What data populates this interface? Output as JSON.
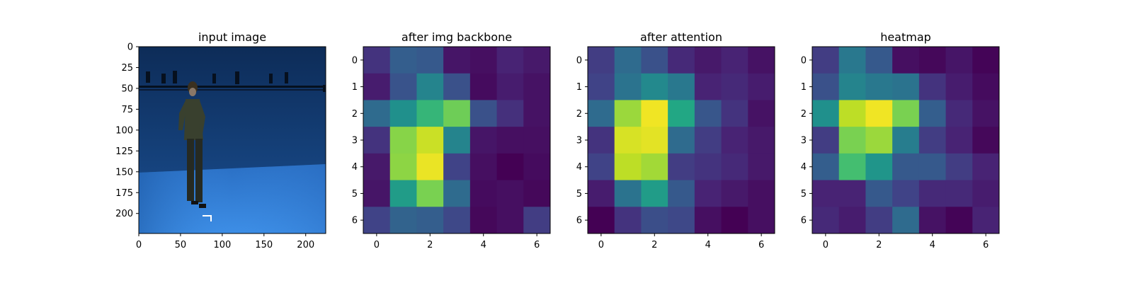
{
  "chart_data": [
    {
      "type": "image",
      "title": "input image",
      "xticks": [
        0,
        50,
        100,
        150,
        200
      ],
      "yticks": [
        0,
        25,
        50,
        75,
        100,
        125,
        150,
        175,
        200
      ],
      "xlim": [
        0,
        224
      ],
      "ylim": [
        224,
        0
      ]
    },
    {
      "type": "heatmap",
      "title": "after img backbone",
      "colormap": "viridis",
      "xticks": [
        0,
        2,
        4,
        6
      ],
      "yticks": [
        0,
        1,
        2,
        3,
        4,
        5,
        6
      ],
      "values": [
        [
          0.15,
          0.3,
          0.28,
          0.06,
          0.04,
          0.1,
          0.07
        ],
        [
          0.08,
          0.26,
          0.45,
          0.25,
          0.03,
          0.08,
          0.05
        ],
        [
          0.35,
          0.5,
          0.66,
          0.78,
          0.25,
          0.14,
          0.05
        ],
        [
          0.15,
          0.82,
          0.92,
          0.45,
          0.06,
          0.04,
          0.04
        ],
        [
          0.07,
          0.83,
          0.97,
          0.2,
          0.04,
          0.0,
          0.03
        ],
        [
          0.06,
          0.55,
          0.8,
          0.35,
          0.03,
          0.04,
          0.02
        ],
        [
          0.2,
          0.32,
          0.3,
          0.22,
          0.02,
          0.04,
          0.18
        ]
      ]
    },
    {
      "type": "heatmap",
      "title": "after attention",
      "colormap": "viridis",
      "xticks": [
        0,
        2,
        4,
        6
      ],
      "yticks": [
        0,
        1,
        2,
        3,
        4,
        5,
        6
      ],
      "values": [
        [
          0.18,
          0.35,
          0.25,
          0.12,
          0.07,
          0.1,
          0.05
        ],
        [
          0.2,
          0.38,
          0.47,
          0.4,
          0.1,
          0.12,
          0.08
        ],
        [
          0.35,
          0.85,
          0.98,
          0.6,
          0.27,
          0.15,
          0.05
        ],
        [
          0.15,
          0.94,
          0.96,
          0.35,
          0.18,
          0.1,
          0.07
        ],
        [
          0.2,
          0.9,
          0.86,
          0.18,
          0.15,
          0.12,
          0.07
        ],
        [
          0.08,
          0.38,
          0.55,
          0.28,
          0.1,
          0.07,
          0.04
        ],
        [
          0.0,
          0.15,
          0.24,
          0.22,
          0.04,
          0.0,
          0.04
        ]
      ]
    },
    {
      "type": "heatmap",
      "title": "heatmap",
      "colormap": "viridis",
      "xticks": [
        0,
        2,
        4,
        6
      ],
      "yticks": [
        0,
        1,
        2,
        3,
        4,
        5,
        6
      ],
      "values": [
        [
          0.18,
          0.4,
          0.28,
          0.04,
          0.02,
          0.06,
          0.01
        ],
        [
          0.25,
          0.45,
          0.4,
          0.38,
          0.15,
          0.08,
          0.03
        ],
        [
          0.5,
          0.9,
          0.98,
          0.8,
          0.3,
          0.12,
          0.05
        ],
        [
          0.18,
          0.8,
          0.85,
          0.42,
          0.18,
          0.1,
          0.02
        ],
        [
          0.3,
          0.7,
          0.52,
          0.28,
          0.28,
          0.18,
          0.1
        ],
        [
          0.1,
          0.1,
          0.28,
          0.2,
          0.12,
          0.12,
          0.08
        ],
        [
          0.12,
          0.08,
          0.18,
          0.35,
          0.05,
          0.01,
          0.1
        ]
      ]
    }
  ]
}
